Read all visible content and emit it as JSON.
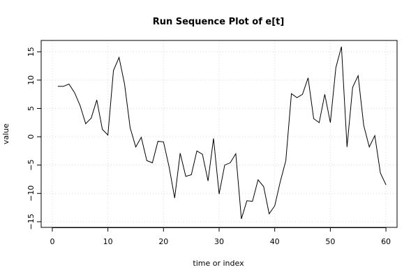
{
  "chart_data": {
    "type": "line",
    "title": "Run Sequence Plot of e[t]",
    "xlabel": "time or index",
    "ylabel": "value",
    "xlim": [
      -2,
      62
    ],
    "ylim": [
      -16,
      17
    ],
    "x_ticks": [
      0,
      10,
      20,
      30,
      40,
      50,
      60
    ],
    "y_ticks": [
      -15,
      -10,
      -5,
      0,
      5,
      10,
      15
    ],
    "grid": true,
    "series": [
      {
        "x": [
          1,
          2,
          3,
          4,
          5,
          6,
          7,
          8,
          9,
          10,
          11,
          12,
          13,
          14,
          15,
          16,
          17,
          18,
          19,
          20,
          21,
          22,
          23,
          24,
          25,
          26,
          27,
          28,
          29,
          30,
          31,
          32,
          33,
          34,
          35,
          36,
          37,
          38,
          39,
          40,
          41,
          42,
          43,
          44,
          45,
          46,
          47,
          48,
          49,
          50,
          51,
          52,
          53,
          54,
          55,
          56,
          57,
          58,
          59,
          60
        ],
        "values": [
          8.9,
          8.9,
          9.3,
          7.8,
          5.5,
          2.3,
          3.3,
          6.5,
          1.3,
          0.3,
          11.7,
          14.0,
          9.3,
          1.6,
          -1.8,
          -0.1,
          -4.2,
          -4.6,
          -0.8,
          -0.9,
          -5.3,
          -10.8,
          -2.9,
          -7.0,
          -6.7,
          -2.5,
          -3.1,
          -7.8,
          -0.3,
          -10.1,
          -5.0,
          -4.6,
          -3.0,
          -14.5,
          -11.3,
          -11.4,
          -7.6,
          -8.8,
          -13.6,
          -12.2,
          -7.9,
          -4.2,
          7.6,
          6.9,
          7.5,
          10.4,
          3.2,
          2.5,
          7.5,
          2.5,
          12.2,
          15.9,
          -1.8,
          8.7,
          10.8,
          2.0,
          -1.8,
          0.2,
          -6.4,
          -8.5
        ]
      }
    ]
  }
}
